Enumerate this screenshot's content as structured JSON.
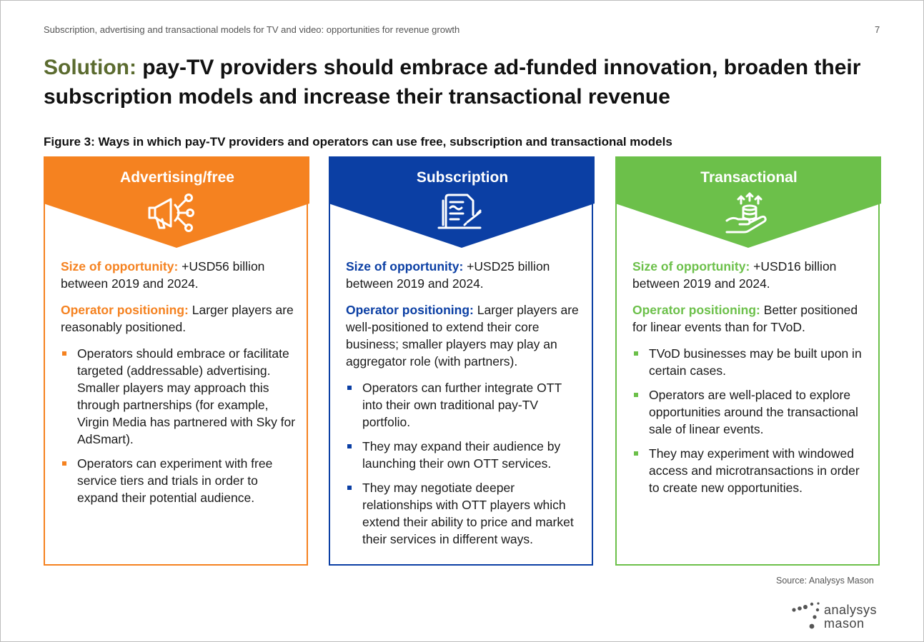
{
  "header": {
    "running_title": "Subscription, advertising and transactional models for TV and video: opportunities for revenue growth",
    "page_number": "7"
  },
  "title": {
    "lead": "Solution:",
    "rest": " pay-TV providers should embrace ad-funded innovation, broaden their subscription models and increase their transactional revenue"
  },
  "figure_caption": "Figure 3: Ways in which pay-TV providers and operators can use free, subscription and transactional models",
  "colors": {
    "advertising": "#f58220",
    "subscription": "#0b3fa4",
    "transactional": "#6cc04a"
  },
  "cards": [
    {
      "title": "Advertising/free",
      "icon": "megaphone-icon",
      "size_label": "Size of opportunity:",
      "size_text": " +USD56 billion between 2019 and 2024.",
      "pos_label": "Operator positioning:",
      "pos_text": " Larger players are reasonably positioned.",
      "bullets": [
        "Operators should embrace or facilitate targeted (addressable) advertising. Smaller players may approach this through partnerships (for example, Virgin Media has partnered with Sky for AdSmart).",
        "Operators can experiment with free service tiers and trials in order to expand their potential audience."
      ]
    },
    {
      "title": "Subscription",
      "icon": "document-signature-icon",
      "size_label": "Size of opportunity:",
      "size_text": " +USD25 billion between 2019 and 2024.",
      "pos_label": "Operator positioning:",
      "pos_text": " Larger players are well-positioned to extend their core business; smaller players may play an aggregator role (with partners).",
      "bullets": [
        "Operators can further integrate OTT into their own traditional pay-TV portfolio.",
        "They may expand their audience by launching their own OTT services.",
        "They may negotiate deeper relationships with OTT players which extend their ability to price and market their services in different ways."
      ]
    },
    {
      "title": "Transactional",
      "icon": "hand-coins-icon",
      "size_label": "Size of opportunity:",
      "size_text": " +USD16 billion between 2019 and 2024.",
      "pos_label": "Operator positioning:",
      "pos_text": " Better positioned for linear events than for TVoD.",
      "bullets": [
        "TVoD businesses may be built upon in certain cases.",
        "Operators are well-placed to explore opportunities around the transactional sale of linear events.",
        "They may experiment with windowed access and microtransactions in order to create new opportunities."
      ]
    }
  ],
  "source": "Source: Analysys Mason",
  "logo": {
    "line1": "analysys",
    "line2": "mason"
  }
}
